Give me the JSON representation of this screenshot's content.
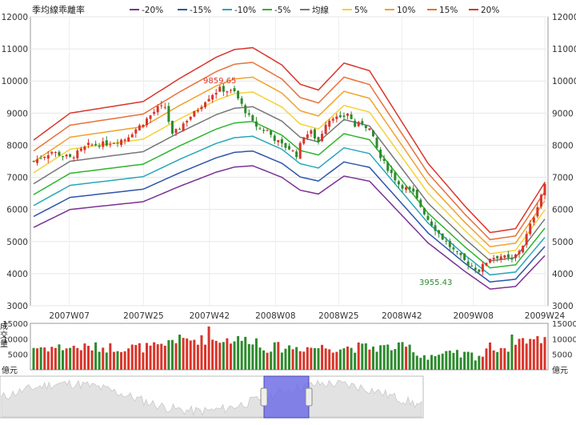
{
  "chart_data": {
    "type": "candlestick",
    "title": "季均線乖離率",
    "legend": [
      {
        "label": "-20%",
        "color": "#7b3294"
      },
      {
        "label": "-15%",
        "color": "#2f54a8"
      },
      {
        "label": "-10%",
        "color": "#2aa6b8"
      },
      {
        "label": "-5%",
        "color": "#2db52d"
      },
      {
        "label": "均線",
        "color": "#777777"
      },
      {
        "label": "5%",
        "color": "#f2d23a"
      },
      {
        "label": "10%",
        "color": "#f0a22c"
      },
      {
        "label": "15%",
        "color": "#e8703a"
      },
      {
        "label": "20%",
        "color": "#d9352a"
      }
    ],
    "price_axis": {
      "ylim": [
        3000,
        12000
      ],
      "ticks": [
        3000,
        4000,
        5000,
        6000,
        7000,
        8000,
        9000,
        10000,
        11000,
        12000
      ]
    },
    "x_ticks": [
      "2007W07",
      "2007W25",
      "2007W42",
      "2008W08",
      "2008W25",
      "2008W42",
      "2009W08",
      "2009W24"
    ],
    "annotations": [
      {
        "text": "9859.65",
        "kind": "high",
        "color": "#d9352a"
      },
      {
        "text": "3955.43",
        "kind": "low",
        "color": "#2e8b2e"
      }
    ],
    "moving_average": {
      "x": [
        0,
        10,
        20,
        30,
        40,
        50,
        55,
        60,
        68,
        73,
        78,
        85,
        92,
        100,
        108,
        118,
        125,
        132,
        140
      ],
      "y": [
        6800,
        7500,
        7650,
        7800,
        8400,
        8950,
        9150,
        9200,
        8750,
        8250,
        8100,
        8800,
        8600,
        7400,
        6200,
        5100,
        4400,
        4500,
        5700
      ]
    },
    "band_offsets_percent": [
      -20,
      -15,
      -10,
      -5,
      0,
      5,
      10,
      15,
      20
    ],
    "price_anchors": {
      "x": [
        0,
        5,
        10,
        15,
        20,
        25,
        30,
        34,
        36,
        38,
        42,
        44,
        47,
        49,
        51,
        53,
        55,
        57,
        60,
        62,
        64,
        66,
        68,
        70,
        72,
        74,
        76,
        78,
        80,
        82,
        84,
        86,
        88,
        90,
        92,
        95,
        100,
        104,
        108,
        112,
        116,
        119,
        122,
        125,
        128,
        131,
        134,
        137,
        140
      ],
      "close": [
        7500,
        7800,
        7600,
        8000,
        8050,
        8200,
        8700,
        9150,
        9200,
        8300,
        8800,
        9000,
        9400,
        9600,
        9750,
        9700,
        9650,
        9250,
        8700,
        8500,
        8450,
        8200,
        8000,
        7900,
        7700,
        8300,
        8400,
        8100,
        8700,
        8900,
        8800,
        9000,
        8600,
        8700,
        8500,
        7600,
        6800,
        6500,
        5700,
        5100,
        4600,
        4300,
        4100,
        4500,
        4550,
        4400,
        4900,
        5800,
        6800
      ]
    },
    "volume_axis": {
      "ticks": [
        5000,
        10000,
        15000
      ],
      "unit": "億元",
      "label": "成交量"
    }
  }
}
